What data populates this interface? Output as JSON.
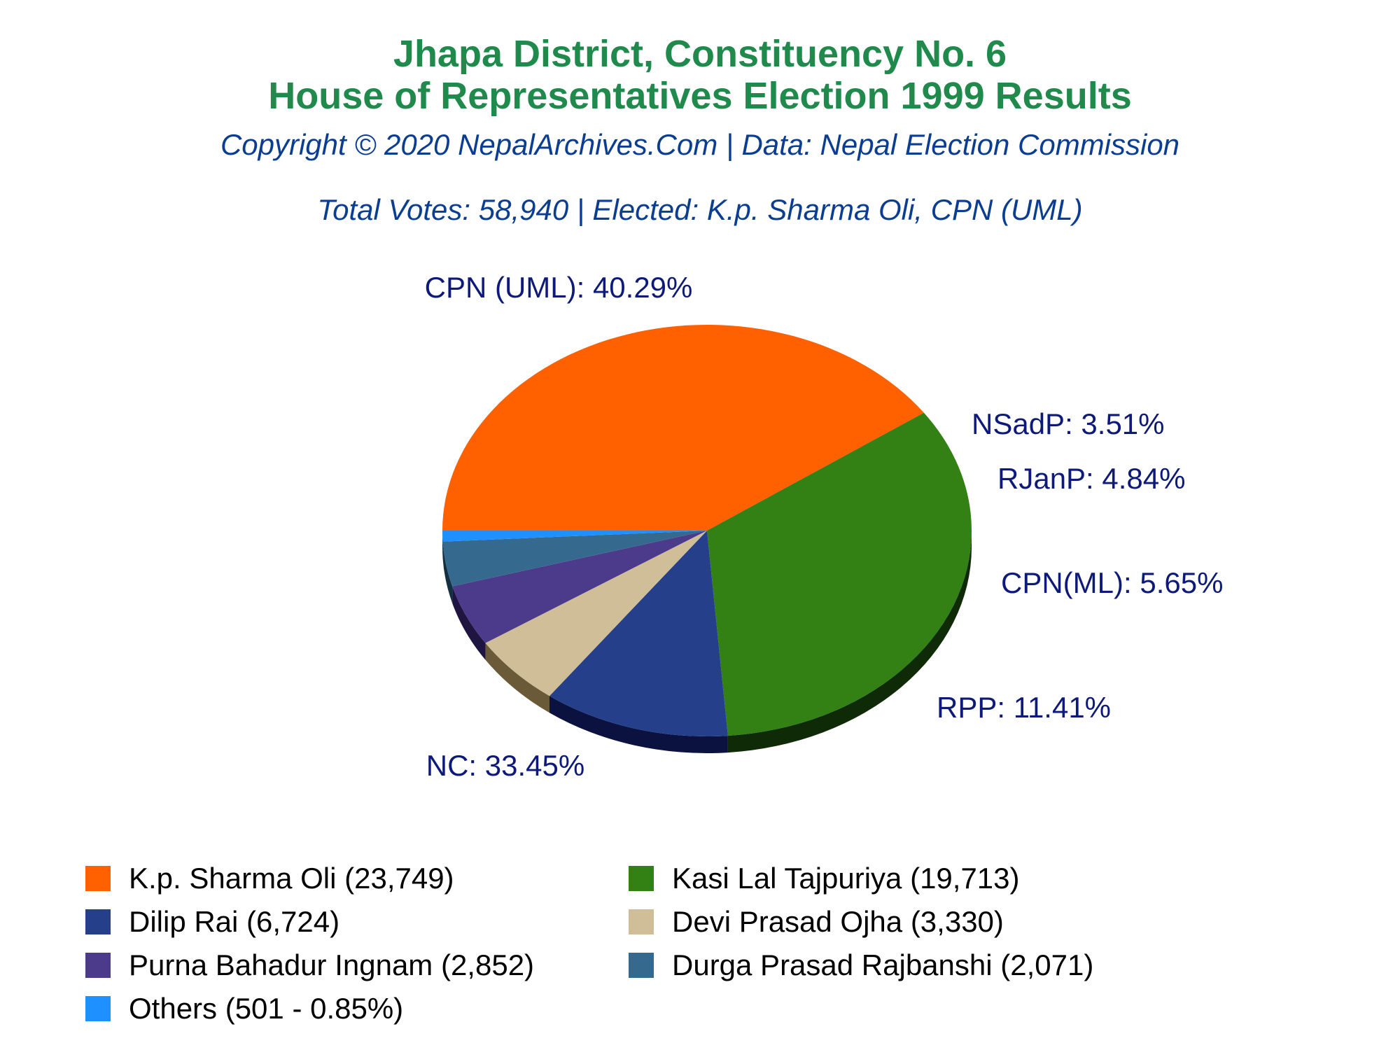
{
  "title_line1": "Jhapa District, Constituency No. 6",
  "title_line2": "House of Representatives Election 1999 Results",
  "copyright": "Copyright © 2020 NepalArchives.Com | Data: Nepal Election Commission",
  "summary": "Total Votes: 58,940 | Elected: K.p. Sharma Oli, CPN (UML)",
  "chart_data": {
    "type": "pie",
    "total_votes": 58940,
    "slices": [
      {
        "party": "CPN (UML)",
        "candidate": "K.p. Sharma Oli",
        "votes": 23749,
        "percent": 40.29,
        "label": "CPN (UML): 40.29%",
        "legend": "K.p. Sharma Oli (23,749)",
        "color": "#ff6000",
        "side_color": "#7a2e00"
      },
      {
        "party": "NC",
        "candidate": "Kasi Lal Tajpuriya",
        "votes": 19713,
        "percent": 33.45,
        "label": "NC: 33.45%",
        "legend": "Kasi Lal Tajpuriya (19,713)",
        "color": "#338015",
        "side_color": "#0f2a06"
      },
      {
        "party": "RPP",
        "candidate": "Dilip Rai",
        "votes": 6724,
        "percent": 11.41,
        "label": "RPP: 11.41%",
        "legend": "Dilip Rai (6,724)",
        "color": "#253f8a",
        "side_color": "#0b1240"
      },
      {
        "party": "CPN(ML)",
        "candidate": "Devi Prasad Ojha",
        "votes": 3330,
        "percent": 5.65,
        "label": "CPN(ML): 5.65%",
        "legend": "Devi Prasad Ojha (3,330)",
        "color": "#cfbe98",
        "side_color": "#6b5a38"
      },
      {
        "party": "RJanP",
        "candidate": "Purna Bahadur Ingnam",
        "votes": 2852,
        "percent": 4.84,
        "label": "RJanP: 4.84%",
        "legend": "Purna Bahadur Ingnam (2,852)",
        "color": "#4c3a8a",
        "side_color": "#1e1540"
      },
      {
        "party": "NSadP",
        "candidate": "Durga Prasad Rajbanshi",
        "votes": 2071,
        "percent": 3.51,
        "label": "NSadP: 3.51%",
        "legend": "Durga Prasad Rajbanshi (2,071)",
        "color": "#356a8e",
        "side_color": "#123040"
      },
      {
        "party": "Others",
        "candidate": "Others",
        "votes": 501,
        "percent": 0.85,
        "label": "",
        "legend": "Others (501 - 0.85%)",
        "color": "#1e90ff",
        "side_color": "#0a3a70"
      }
    ],
    "label_color": "#0d1a7a"
  }
}
